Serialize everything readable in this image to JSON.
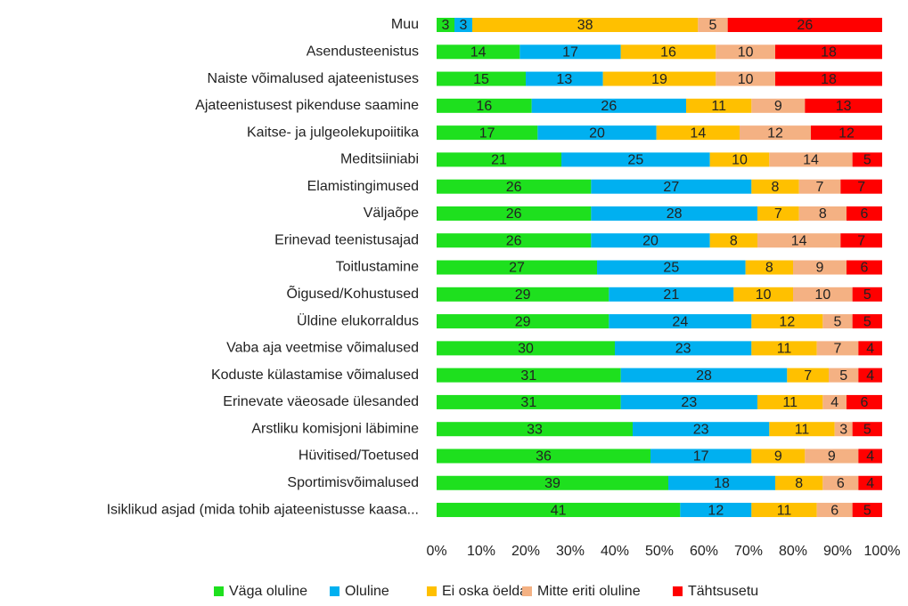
{
  "chart_data": {
    "type": "bar",
    "orientation": "horizontal",
    "stacked": "percent",
    "categories": [
      "Muu",
      "Asendusteenistus",
      "Naiste võimalused ajateenistuses",
      "Ajateenistusest pikenduse saamine",
      "Kaitse- ja julgeolekupoiitika",
      "Meditsiiniabi",
      "Elamistingimused",
      "Väljaõpe",
      "Erinevad teenistusajad",
      "Toitlustamine",
      "Õigused/Kohustused",
      "Üldine elukorraldus",
      "Vaba aja veetmise võimalused",
      "Koduste külastamise võimalused",
      "Erinevate väeosade ülesanded",
      "Arstliku komisjoni läbimine",
      "Hüvitised/Toetused",
      "Sportimisvõimalused",
      "Isiklikud asjad (mida tohib ajateenistusse kaasa..."
    ],
    "series": [
      {
        "name": "Väga oluline",
        "color": "#1ee01e",
        "values": [
          3,
          14,
          15,
          16,
          17,
          21,
          26,
          26,
          26,
          27,
          29,
          29,
          30,
          31,
          31,
          33,
          36,
          39,
          41
        ]
      },
      {
        "name": "Oluline",
        "color": "#00b0f0",
        "values": [
          3,
          17,
          13,
          26,
          20,
          25,
          27,
          28,
          20,
          25,
          21,
          24,
          23,
          28,
          23,
          23,
          17,
          18,
          12
        ]
      },
      {
        "name": "Ei oska öelda",
        "color": "#ffc000",
        "values": [
          38,
          16,
          19,
          11,
          14,
          10,
          8,
          7,
          8,
          8,
          10,
          12,
          11,
          7,
          11,
          11,
          9,
          8,
          11
        ]
      },
      {
        "name": "Mitte eriti oluline",
        "color": "#f4b183",
        "values": [
          5,
          10,
          10,
          9,
          12,
          14,
          7,
          8,
          14,
          9,
          10,
          5,
          7,
          5,
          4,
          3,
          9,
          6,
          6
        ]
      },
      {
        "name": "Tähtsusetu",
        "color": "#ff0000",
        "values": [
          26,
          18,
          18,
          13,
          12,
          5,
          7,
          6,
          7,
          6,
          5,
          5,
          4,
          4,
          6,
          5,
          4,
          4,
          5
        ]
      }
    ],
    "xlim": [
      0,
      100
    ],
    "xticks": [
      {
        "value": 0,
        "label": "0%"
      },
      {
        "value": 10,
        "label": "10%"
      },
      {
        "value": 20,
        "label": "20%"
      },
      {
        "value": 30,
        "label": "30%"
      },
      {
        "value": 40,
        "label": "40%"
      },
      {
        "value": 50,
        "label": "50%"
      },
      {
        "value": 60,
        "label": "60%"
      },
      {
        "value": 70,
        "label": "70%"
      },
      {
        "value": 80,
        "label": "80%"
      },
      {
        "value": 90,
        "label": "90%"
      },
      {
        "value": 100,
        "label": "100%"
      }
    ],
    "legend": "bottom"
  }
}
